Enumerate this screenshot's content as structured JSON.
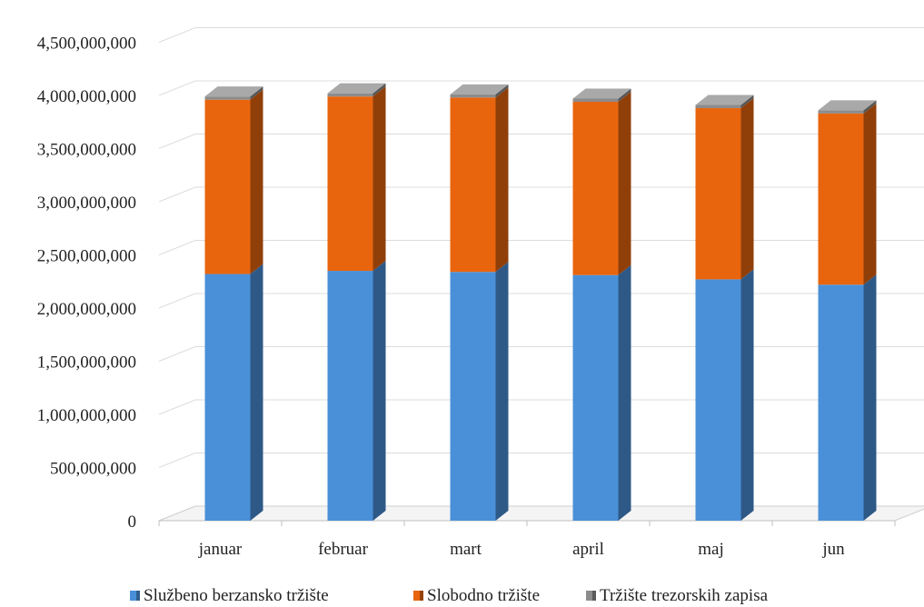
{
  "chart_data": {
    "type": "bar",
    "stacked": true,
    "style": "3d-column",
    "categories": [
      "januar",
      "februar",
      "mart",
      "april",
      "maj",
      "jun"
    ],
    "series": [
      {
        "name": "Službeno berzansko tržište",
        "color": "#4a90d9",
        "values": [
          2320000000,
          2350000000,
          2340000000,
          2310000000,
          2270000000,
          2220000000
        ]
      },
      {
        "name": "Slobodno tržište",
        "color": "#e8650e",
        "values": [
          1640000000,
          1640000000,
          1640000000,
          1630000000,
          1610000000,
          1610000000
        ]
      },
      {
        "name": "Tržište trezorskih zapisa",
        "color": "#8c8c8c",
        "values": [
          30000000,
          30000000,
          30000000,
          30000000,
          30000000,
          30000000
        ]
      }
    ],
    "ylim": [
      0,
      5000000000
    ],
    "yticks": [
      "0",
      "500,000,000",
      "1,000,000,000",
      "1,500,000,000",
      "2,000,000,000",
      "2,500,000,000",
      "3,000,000,000",
      "3,500,000,000",
      "4,000,000,000",
      "4,500,000,000"
    ],
    "grid": true,
    "legend_position": "bottom",
    "title": "",
    "xlabel": "",
    "ylabel": ""
  }
}
